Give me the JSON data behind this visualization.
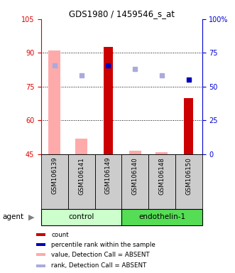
{
  "title": "GDS1980 / 1459546_s_at",
  "samples": [
    "GSM106139",
    "GSM106141",
    "GSM106149",
    "GSM106140",
    "GSM106148",
    "GSM106150"
  ],
  "ylim_left": [
    45,
    105
  ],
  "ylim_right": [
    0,
    100
  ],
  "yticks_left": [
    45,
    60,
    75,
    90,
    105
  ],
  "yticks_right": [
    0,
    25,
    50,
    75,
    100
  ],
  "ytick_labels_right": [
    "0",
    "25",
    "50",
    "75",
    "100%"
  ],
  "bar_bottom": 45,
  "red_bars": {
    "GSM106139": null,
    "GSM106141": null,
    "GSM106149": 92.5,
    "GSM106140": null,
    "GSM106148": null,
    "GSM106150": 70.0
  },
  "pink_bars": {
    "GSM106139": 91.0,
    "GSM106141": 52.0,
    "GSM106149": null,
    "GSM106140": 46.5,
    "GSM106148": 46.0,
    "GSM106150": null
  },
  "blue_squares": {
    "GSM106139": null,
    "GSM106141": null,
    "GSM106149": 84.5,
    "GSM106140": null,
    "GSM106148": null,
    "GSM106150": 78.0
  },
  "light_blue_squares": {
    "GSM106139": 84.5,
    "GSM106141": 80.0,
    "GSM106149": null,
    "GSM106140": 83.0,
    "GSM106148": 80.0,
    "GSM106150": null
  },
  "group_colors": {
    "control": "#ccffcc",
    "endothelin-1": "#55dd55"
  },
  "bar_color_red": "#cc0000",
  "bar_color_pink": "#ffaaaa",
  "dot_color_blue": "#0000bb",
  "dot_color_lightblue": "#aaaadd",
  "left_axis_color": "#dd0000",
  "right_axis_color": "#0000cc",
  "sample_area_color": "#cccccc",
  "legend_items": [
    {
      "color": "#cc0000",
      "label": "count"
    },
    {
      "color": "#0000bb",
      "label": "percentile rank within the sample"
    },
    {
      "color": "#ffaaaa",
      "label": "value, Detection Call = ABSENT"
    },
    {
      "color": "#aaaadd",
      "label": "rank, Detection Call = ABSENT"
    }
  ]
}
